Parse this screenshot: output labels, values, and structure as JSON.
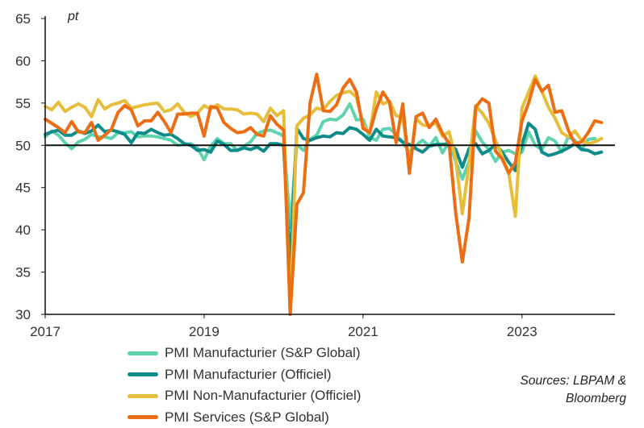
{
  "chart_data": {
    "type": "line",
    "ylabel": "pt",
    "ylim": [
      30,
      65
    ],
    "yticks": [
      30,
      35,
      40,
      45,
      50,
      55,
      60,
      65
    ],
    "xlim": [
      2017.0,
      2024.17
    ],
    "xticks": [
      2017,
      2019,
      2021,
      2023
    ],
    "reference_line": 50,
    "x_start": 2017.0,
    "x_step_months": 1,
    "series": [
      {
        "name": "PMI Manufacturier (S&P Global)",
        "color": "#5fd3b0",
        "values": [
          51.0,
          51.7,
          51.2,
          50.3,
          49.6,
          50.4,
          50.7,
          51.3,
          51.0,
          51.0,
          50.8,
          51.5,
          51.5,
          51.6,
          51.0,
          51.1,
          51.1,
          51.0,
          50.8,
          50.6,
          50.0,
          50.1,
          50.2,
          49.7,
          48.3,
          49.9,
          50.8,
          50.2,
          50.2,
          49.4,
          49.9,
          50.4,
          51.4,
          51.7,
          51.8,
          51.5,
          51.1,
          40.3,
          50.1,
          49.4,
          50.7,
          51.2,
          52.8,
          53.1,
          53.0,
          53.6,
          54.9,
          53.0,
          53.1,
          50.9,
          50.6,
          51.9,
          52.0,
          51.3,
          50.3,
          49.2,
          50.0,
          50.6,
          49.9,
          50.9,
          49.1,
          50.4,
          48.1,
          46.0,
          48.1,
          51.7,
          50.4,
          49.5,
          48.1,
          49.2,
          49.4,
          49.0,
          49.2,
          51.6,
          50.0,
          49.5,
          50.9,
          50.5,
          49.2,
          51.0,
          50.6,
          49.5,
          50.7,
          50.8
        ]
      },
      {
        "name": "PMI Manufacturier (Officiel)",
        "color": "#0e8c8a",
        "values": [
          51.3,
          51.6,
          51.8,
          51.2,
          51.2,
          51.7,
          51.4,
          51.7,
          52.4,
          51.6,
          51.8,
          51.6,
          51.3,
          50.3,
          51.5,
          51.4,
          51.9,
          51.5,
          51.2,
          51.3,
          50.8,
          50.2,
          50.0,
          49.4,
          49.5,
          49.2,
          50.5,
          50.1,
          49.4,
          49.4,
          49.7,
          49.5,
          49.8,
          49.3,
          50.2,
          50.2,
          50.0,
          35.7,
          52.0,
          50.8,
          50.6,
          50.9,
          51.1,
          51.0,
          51.5,
          51.4,
          52.1,
          51.9,
          51.3,
          50.6,
          51.9,
          51.1,
          51.0,
          50.9,
          50.4,
          50.1,
          49.6,
          49.2,
          49.9,
          50.1,
          50.1,
          50.2,
          49.5,
          47.4,
          49.6,
          50.2,
          49.0,
          49.4,
          50.1,
          49.2,
          48.0,
          47.0,
          50.1,
          52.6,
          51.9,
          49.2,
          48.8,
          49.0,
          49.3,
          49.7,
          50.2,
          49.5,
          49.4,
          49.0,
          49.2
        ]
      },
      {
        "name": "PMI Non-Manufacturier (Officiel)",
        "color": "#e6be3c",
        "values": [
          54.6,
          54.2,
          55.1,
          54.0,
          54.5,
          54.9,
          54.5,
          53.4,
          55.4,
          54.3,
          54.8,
          55.0,
          55.3,
          54.4,
          54.6,
          54.8,
          54.9,
          55.0,
          54.0,
          54.2,
          54.9,
          53.9,
          53.4,
          53.8,
          54.7,
          54.3,
          54.8,
          54.3,
          54.3,
          54.2,
          53.7,
          53.8,
          53.7,
          52.8,
          54.4,
          53.5,
          54.1,
          29.6,
          52.3,
          53.2,
          53.6,
          54.4,
          54.2,
          55.2,
          55.9,
          56.2,
          56.4,
          55.7,
          52.4,
          51.4,
          56.3,
          54.9,
          55.2,
          53.5,
          53.3,
          47.5,
          53.2,
          52.4,
          52.3,
          52.7,
          51.1,
          51.6,
          48.4,
          41.9,
          47.8,
          54.7,
          53.8,
          52.6,
          50.6,
          48.7,
          46.7,
          41.6,
          54.4,
          56.3,
          58.2,
          56.4,
          54.5,
          53.2,
          51.5,
          51.0,
          51.7,
          50.6,
          50.2,
          50.4,
          50.8
        ]
      },
      {
        "name": "PMI Services (S&P Global)",
        "color": "#eb6e14",
        "values": [
          53.1,
          52.6,
          52.1,
          51.5,
          52.8,
          51.6,
          51.5,
          52.7,
          50.6,
          51.2,
          51.9,
          53.9,
          54.7,
          54.2,
          52.3,
          52.9,
          52.9,
          53.9,
          52.8,
          51.5,
          53.7,
          53.7,
          53.8,
          53.8,
          51.1,
          54.6,
          54.4,
          52.7,
          52.0,
          51.5,
          51.6,
          52.1,
          51.3,
          51.1,
          53.5,
          52.5,
          51.8,
          26.5,
          43.0,
          44.4,
          55.0,
          58.4,
          54.1,
          54.0,
          54.8,
          56.8,
          57.8,
          56.3,
          52.0,
          51.5,
          54.3,
          56.3,
          55.1,
          50.3,
          54.9,
          46.7,
          53.4,
          53.8,
          52.1,
          53.1,
          51.4,
          50.2,
          42.0,
          36.2,
          41.4,
          54.5,
          55.5,
          55.0,
          49.3,
          48.4,
          46.7,
          48.0,
          52.9,
          55.0,
          57.8,
          56.4,
          57.1,
          53.9,
          54.1,
          51.8,
          50.2,
          50.4,
          51.5,
          52.9,
          52.7
        ]
      }
    ]
  },
  "legend": {
    "items": [
      "PMI Manufacturier (S&P Global)",
      "PMI Manufacturier (Officiel)",
      "PMI Non-Manufacturier (Officiel)",
      "PMI Services (S&P Global)"
    ]
  },
  "source": {
    "line1": "Sources: LBPAM &",
    "line2": "Bloomberg"
  }
}
